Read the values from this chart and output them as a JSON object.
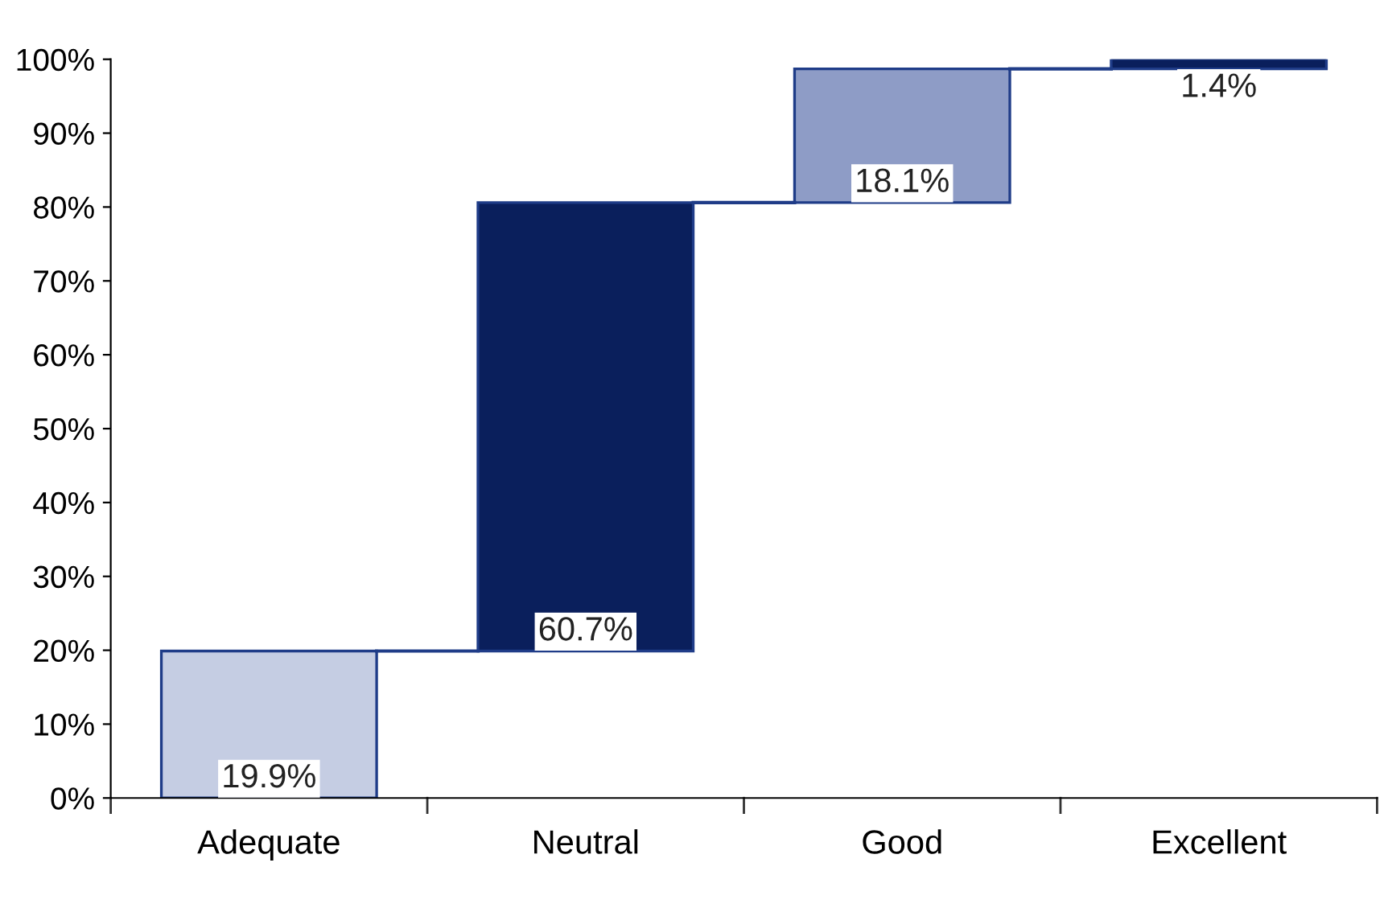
{
  "chart_data": {
    "type": "bar",
    "categories": [
      "Adequate",
      "Neutral",
      "Good",
      "Excellent"
    ],
    "values": [
      19.9,
      60.7,
      18.1,
      1.4
    ],
    "base": [
      0,
      19.9,
      80.6,
      98.7
    ],
    "colors": [
      "#c5cde3",
      "#0a1f5c",
      "#8e9cc6",
      "#0a1f5c"
    ],
    "value_labels": [
      "19.9%",
      "60.7%",
      "18.1%",
      "1.4%"
    ],
    "ylim": [
      0,
      100
    ],
    "yticks": [
      {
        "value": 0,
        "label": "0%"
      },
      {
        "value": 10,
        "label": "10%"
      },
      {
        "value": 20,
        "label": "20%"
      },
      {
        "value": 30,
        "label": "30%"
      },
      {
        "value": 40,
        "label": "40%"
      },
      {
        "value": 50,
        "label": "50%"
      },
      {
        "value": 60,
        "label": "60%"
      },
      {
        "value": 70,
        "label": "70%"
      },
      {
        "value": 80,
        "label": "80%"
      },
      {
        "value": 90,
        "label": "90%"
      },
      {
        "value": 100,
        "label": "100%"
      }
    ],
    "grid": false
  }
}
